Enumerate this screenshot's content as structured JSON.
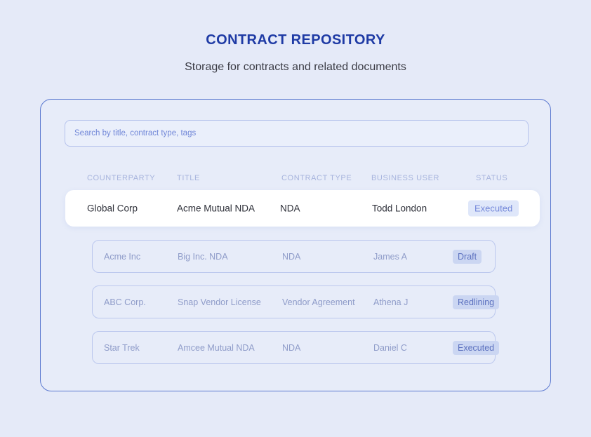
{
  "page": {
    "title": "CONTRACT REPOSITORY",
    "subtitle": "Storage for contracts and related documents"
  },
  "search": {
    "placeholder": "Search by title, contract type, tags"
  },
  "table": {
    "columns": [
      "COUNTERPARTY",
      "TITLE",
      "CONTRACT TYPE",
      "BUSINESS USER",
      "STATUS"
    ],
    "rows": [
      {
        "counterparty": "Global Corp",
        "title": "Acme Mutual NDA",
        "contract_type": "NDA",
        "business_user": "Todd London",
        "status": "Executed",
        "selected": true
      },
      {
        "counterparty": "Acme Inc",
        "title": "Big Inc. NDA",
        "contract_type": "NDA",
        "business_user": "James A",
        "status": "Draft",
        "selected": false
      },
      {
        "counterparty": "ABC Corp.",
        "title": "Snap Vendor License",
        "contract_type": "Vendor Agreement",
        "business_user": "Athena J",
        "status": "Redlining",
        "selected": false
      },
      {
        "counterparty": "Star Trek",
        "title": "Amcee Mutual NDA",
        "contract_type": "NDA",
        "business_user": "Daniel C",
        "status": "Executed",
        "selected": false
      }
    ]
  },
  "colors": {
    "page_background": "#e5eaf8",
    "title_text": "#1f3ba5",
    "panel_border": "#5a78d0",
    "header_text": "#a7b4dd",
    "active_row_background": "#ffffff",
    "active_row_text": "#2e3039",
    "item_row_border": "#bcc8ee",
    "item_row_text": "#8f9cc9",
    "badge_active_background": "#dfe7fa",
    "badge_active_text": "#7589da",
    "badge_item_background": "#cbd6f2",
    "badge_item_text": "#5c71bf"
  }
}
